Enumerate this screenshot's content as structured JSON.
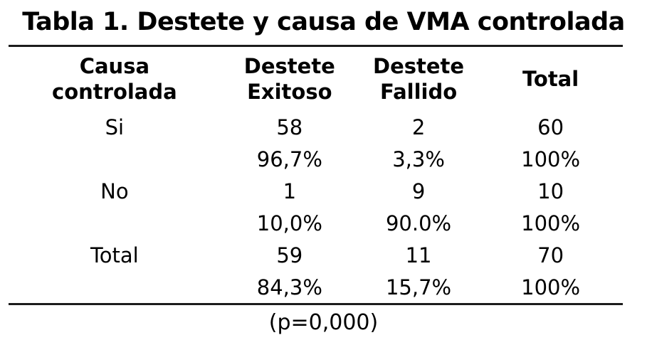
{
  "title": "Tabla 1. Destete y causa de VMA controlada",
  "table": {
    "header": [
      {
        "line1": "Causa",
        "line2": "controlada"
      },
      {
        "line1": "Destete",
        "line2": "Exitoso"
      },
      {
        "line1": "Destete",
        "line2": "Fallido"
      },
      {
        "line1": "Total",
        "line2": ""
      }
    ],
    "rows": [
      {
        "label": "Si",
        "counts": [
          "58",
          "2",
          "60"
        ],
        "pcts": [
          "96,7%",
          "3,3%",
          "100%"
        ]
      },
      {
        "label": "No",
        "counts": [
          "1",
          "9",
          "10"
        ],
        "pcts": [
          "10,0%",
          "90.0%",
          "100%"
        ]
      },
      {
        "label": "Total",
        "counts": [
          "59",
          "11",
          "70"
        ],
        "pcts": [
          "84,3%",
          "15,7%",
          "100%"
        ]
      }
    ],
    "p_value": "(p=0,000)"
  },
  "colors": {
    "background": "#ffffff",
    "text": "#000000",
    "rule": "#1c1c1c"
  }
}
